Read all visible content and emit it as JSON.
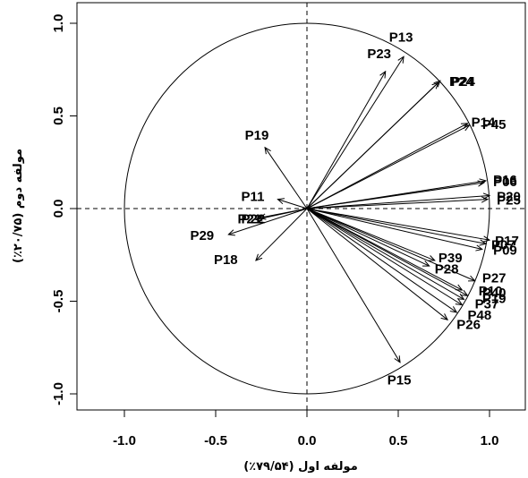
{
  "chart_data": {
    "type": "scatter",
    "subtype": "pca-correlation-circle",
    "xlabel": "مولفه اول (۷۹/۵۴٪)",
    "ylabel": "مولفه دوم (۲۰/۷۵٪)",
    "xlim": [
      -1.2,
      1.2
    ],
    "ylim": [
      -1.1,
      1.05
    ],
    "xticks": [
      {
        "v": -1.0,
        "label": "-1.0"
      },
      {
        "v": -0.5,
        "label": "-0.5"
      },
      {
        "v": 0.0,
        "label": "0.0"
      },
      {
        "v": 0.5,
        "label": "0.5"
      },
      {
        "v": 1.0,
        "label": "1.0"
      }
    ],
    "yticks": [
      {
        "v": -1.0,
        "label": "-1.0"
      },
      {
        "v": -0.5,
        "label": "-0.5"
      },
      {
        "v": 0.0,
        "label": "0.0"
      },
      {
        "v": 0.5,
        "label": "0.5"
      },
      {
        "v": 1.0,
        "label": "1.0"
      }
    ],
    "unit_circle": true,
    "reference_lines": [
      0,
      0
    ],
    "grid": false,
    "vectors": [
      {
        "name": "P13",
        "x": 0.53,
        "y": 0.82,
        "lx": 0.45,
        "ly": 0.92
      },
      {
        "name": "P23",
        "x": 0.43,
        "y": 0.74,
        "lx": 0.33,
        "ly": 0.83
      },
      {
        "name": "P24",
        "x": 0.73,
        "y": 0.69,
        "lx": 0.78,
        "ly": 0.68
      },
      {
        "name": "P24",
        "x": 0.72,
        "y": 0.68,
        "lx": 0.79,
        "ly": 0.68
      },
      {
        "name": "P14",
        "x": 0.88,
        "y": 0.46,
        "lx": 0.9,
        "ly": 0.46
      },
      {
        "name": "P45",
        "x": 0.89,
        "y": 0.45,
        "lx": 0.96,
        "ly": 0.45
      },
      {
        "name": "P16",
        "x": 0.98,
        "y": 0.15,
        "lx": 1.02,
        "ly": 0.15
      },
      {
        "name": "P06",
        "x": 0.97,
        "y": 0.14,
        "lx": 1.02,
        "ly": 0.14
      },
      {
        "name": "P20",
        "x": 1.0,
        "y": 0.07,
        "lx": 1.04,
        "ly": 0.06
      },
      {
        "name": "P25",
        "x": 0.99,
        "y": 0.05,
        "lx": 1.04,
        "ly": 0.04
      },
      {
        "name": "P19",
        "x": -0.23,
        "y": 0.33,
        "lx": -0.34,
        "ly": 0.39
      },
      {
        "name": "P11",
        "x": -0.16,
        "y": 0.05,
        "lx": -0.36,
        "ly": 0.06
      },
      {
        "name": "P21",
        "x": -0.28,
        "y": -0.06,
        "lx": -0.38,
        "ly": -0.06
      },
      {
        "name": "P22",
        "x": -0.26,
        "y": -0.05,
        "lx": -0.36,
        "ly": -0.06
      },
      {
        "name": "P29",
        "x": -0.43,
        "y": -0.14,
        "lx": -0.64,
        "ly": -0.15
      },
      {
        "name": "P18",
        "x": -0.28,
        "y": -0.28,
        "lx": -0.51,
        "ly": -0.28
      },
      {
        "name": "P17",
        "x": 1.0,
        "y": -0.17,
        "lx": 1.03,
        "ly": -0.18
      },
      {
        "name": "P07",
        "x": 0.98,
        "y": -0.19,
        "lx": 1.01,
        "ly": -0.2
      },
      {
        "name": "P09",
        "x": 0.96,
        "y": -0.22,
        "lx": 1.02,
        "ly": -0.23
      },
      {
        "name": "P39",
        "x": 0.7,
        "y": -0.28,
        "lx": 0.72,
        "ly": -0.27
      },
      {
        "name": "P28",
        "x": 0.67,
        "y": -0.31,
        "lx": 0.7,
        "ly": -0.33
      },
      {
        "name": "P27",
        "x": 0.92,
        "y": -0.39,
        "lx": 0.96,
        "ly": -0.38
      },
      {
        "name": "P10",
        "x": 0.85,
        "y": -0.44,
        "lx": 0.94,
        "ly": -0.45
      },
      {
        "name": "P40",
        "x": 0.88,
        "y": -0.47,
        "lx": 0.96,
        "ly": -0.46
      },
      {
        "name": "P19",
        "x": 0.86,
        "y": -0.49,
        "lx": 0.96,
        "ly": -0.49
      },
      {
        "name": "P37",
        "x": 0.85,
        "y": -0.52,
        "lx": 0.92,
        "ly": -0.52
      },
      {
        "name": "P48",
        "x": 0.82,
        "y": -0.56,
        "lx": 0.88,
        "ly": -0.58
      },
      {
        "name": "P26",
        "x": 0.77,
        "y": -0.6,
        "lx": 0.82,
        "ly": -0.63
      },
      {
        "name": "P15",
        "x": 0.51,
        "y": -0.83,
        "lx": 0.44,
        "ly": -0.93
      }
    ]
  }
}
